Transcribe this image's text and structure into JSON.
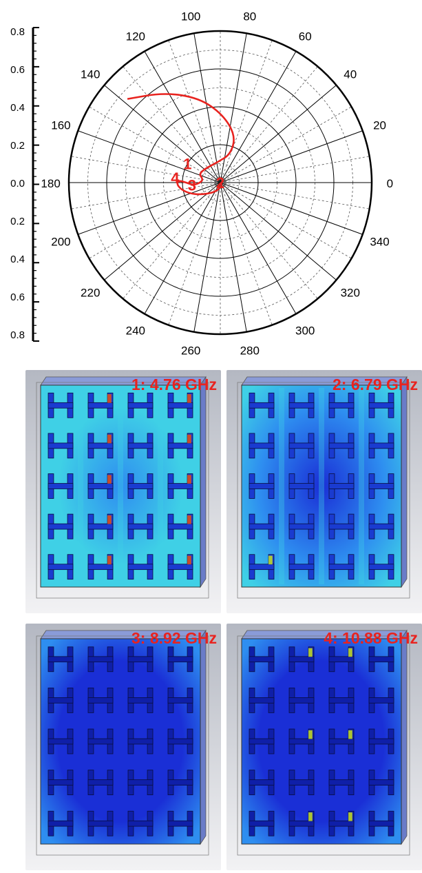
{
  "chart_data": {
    "type": "polar",
    "radial_axis": {
      "ticks_upper": [
        "0.8",
        "0.6",
        "0.4",
        "0.2",
        "0.0"
      ],
      "ticks_lower": [
        "0.2",
        "0.4",
        "0.6",
        "0.8"
      ],
      "range": [
        0,
        0.8
      ]
    },
    "angular_ticks": [
      "0",
      "20",
      "40",
      "60",
      "80",
      "100",
      "120",
      "140",
      "160",
      "180",
      "200",
      "220",
      "240",
      "260",
      "280",
      "300",
      "320",
      "340"
    ],
    "series": [
      {
        "color": "#e8231f",
        "points": [
          {
            "angle": 138,
            "r": 0.66
          },
          {
            "angle": 122,
            "r": 0.56
          },
          {
            "angle": 104,
            "r": 0.46
          },
          {
            "angle": 88,
            "r": 0.36
          },
          {
            "angle": 72,
            "r": 0.26
          },
          {
            "angle": 70,
            "r": 0.16
          },
          {
            "angle": 96,
            "r": 0.11
          },
          {
            "angle": 140,
            "r": 0.11
          },
          {
            "angle": 158,
            "r": 0.12
          },
          {
            "angle": 168,
            "r": 0.095
          },
          {
            "angle": 178,
            "r": 0.1
          },
          {
            "angle": 186,
            "r": 0.14
          },
          {
            "angle": 180,
            "r": 0.18
          },
          {
            "angle": 177,
            "r": 0.22
          },
          {
            "angle": 182,
            "r": 0.23
          },
          {
            "angle": 190,
            "r": 0.21
          },
          {
            "angle": 200,
            "r": 0.17
          },
          {
            "angle": 212,
            "r": 0.12
          },
          {
            "angle": 240,
            "r": 0.06
          },
          {
            "angle": 300,
            "r": 0.02
          },
          {
            "angle": 0,
            "r": 0.0
          }
        ]
      }
    ],
    "annotations": [
      {
        "text": "1",
        "angle": 150,
        "r": 0.2,
        "color": "#e8231f"
      },
      {
        "text": "2",
        "angle": 0,
        "r": 0.0,
        "color": "#e8231f"
      },
      {
        "text": "3",
        "angle": 185,
        "r": 0.15,
        "color": "#e8231f"
      },
      {
        "text": "4",
        "angle": 174,
        "r": 0.24,
        "color": "#e8231f"
      }
    ]
  },
  "panels": [
    {
      "label": "1: 4.76 GHz",
      "mode": 1
    },
    {
      "label": "2: 6.79 GHz",
      "mode": 2
    },
    {
      "label": "3: 8.92 GHz",
      "mode": 3
    },
    {
      "label": "4: 10.88 GHz",
      "mode": 4
    }
  ],
  "colors": {
    "curve": "#e8231f",
    "label": "#e8231f",
    "field_deep": "#1a2fd6",
    "field_mid": "#2e8ef0",
    "field_light": "#3fd0e6",
    "field_hot": "#c8e020",
    "field_max": "#e85010"
  }
}
